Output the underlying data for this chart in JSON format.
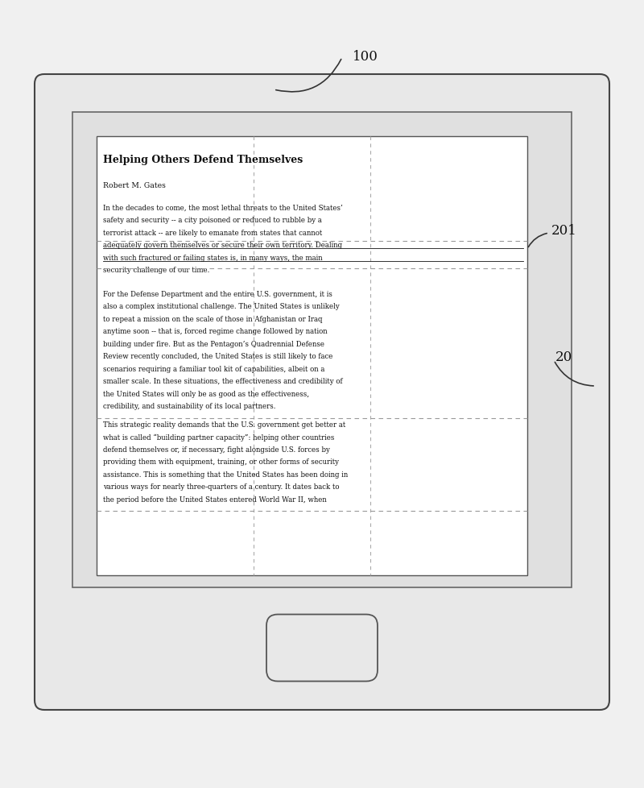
{
  "bg_color": "#f0f0f0",
  "device_outer_color": "#e8e8e8",
  "device_border_color": "#444444",
  "screen_color": "#e0e0e0",
  "page_color": "#ffffff",
  "text_color": "#111111",
  "line_color": "#888888",
  "label_100": "100",
  "label_201": "201",
  "label_20": "20",
  "title_text": "Helping Others Defend Themselves",
  "author_text": "Robert M. Gates",
  "para1_lines": [
    "In the decades to come, the most lethal threats to the United States’",
    "safety and security -- a city poisoned or reduced to rubble by a",
    "terrorist attack -- are likely to emanate from states that cannot",
    "adequately govern themselves or secure their own territory. Dealing",
    "with such fractured or failing states is, in many ways, the main",
    "security challenge of our time."
  ],
  "para2_lines": [
    "For the Defense Department and the entire U.S. government, it is",
    "also a complex institutional challenge. The United States is unlikely",
    "to repeat a mission on the scale of those in Afghanistan or Iraq",
    "anytime soon -- that is, forced regime change followed by nation",
    "building under fire. But as the Pentagon’s Quadrennial Defense",
    "Review recently concluded, the United States is still likely to face",
    "scenarios requiring a familiar tool kit of capabilities, albeit on a",
    "smaller scale. In these situations, the effectiveness and credibility of",
    "the United States will only be as good as the effectiveness,",
    "credibility, and sustainability of its local partners."
  ],
  "para3_lines": [
    "This strategic reality demands that the U.S. government get better at",
    "what is called “building partner capacity”: helping other countries",
    "defend themselves or, if necessary, fight alongside U.S. forces by",
    "providing them with equipment, training, or other forms of security",
    "assistance. This is something that the United States has been doing in",
    "various ways for nearly three-quarters of a century. It dates back to",
    "the period before the United States entered World War II, when"
  ],
  "strikethrough_lines": [
    3,
    4
  ],
  "fig_width": 8.0,
  "fig_height": 9.79,
  "dpi": 100
}
